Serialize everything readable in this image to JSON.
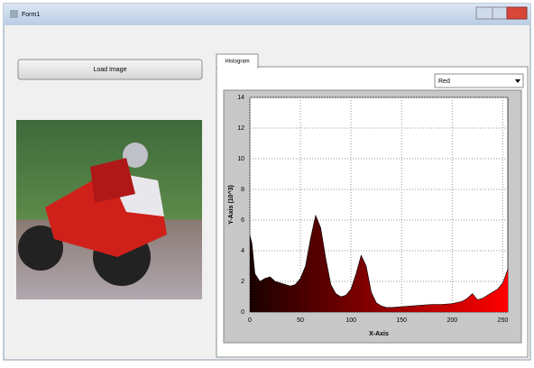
{
  "window": {
    "title": "Form1"
  },
  "button": {
    "label": "Load Image"
  },
  "tab": {
    "label": "Histogram"
  },
  "dropdown": {
    "selected": "Red"
  },
  "chart_data": {
    "type": "area",
    "x_label": "X-Axis",
    "y_label": "Y-Axis (10^3)",
    "x": [
      0,
      2,
      5,
      10,
      15,
      20,
      25,
      30,
      35,
      40,
      45,
      50,
      55,
      60,
      65,
      70,
      75,
      80,
      85,
      90,
      95,
      100,
      105,
      110,
      115,
      120,
      125,
      130,
      135,
      140,
      150,
      160,
      170,
      180,
      190,
      200,
      210,
      215,
      220,
      225,
      230,
      235,
      240,
      245,
      250,
      255
    ],
    "values": [
      5.0,
      4.5,
      2.5,
      2.0,
      2.2,
      2.3,
      2.0,
      1.9,
      1.8,
      1.7,
      1.8,
      2.2,
      3.0,
      4.8,
      6.3,
      5.5,
      3.5,
      1.8,
      1.2,
      1.0,
      1.1,
      1.5,
      2.5,
      3.7,
      3.0,
      1.3,
      0.6,
      0.4,
      0.3,
      0.3,
      0.35,
      0.4,
      0.45,
      0.5,
      0.5,
      0.55,
      0.7,
      0.9,
      1.2,
      0.8,
      0.9,
      1.1,
      1.3,
      1.5,
      1.9,
      2.8
    ],
    "xlim": [
      0,
      255
    ],
    "ylim": [
      0,
      14
    ],
    "xticks": [
      0,
      50,
      100,
      150,
      200,
      250
    ],
    "yticks": [
      0,
      2,
      4,
      6,
      8,
      10,
      12,
      14
    ],
    "grid": true,
    "colors": [
      "#1a0000",
      "#ff0000"
    ]
  }
}
